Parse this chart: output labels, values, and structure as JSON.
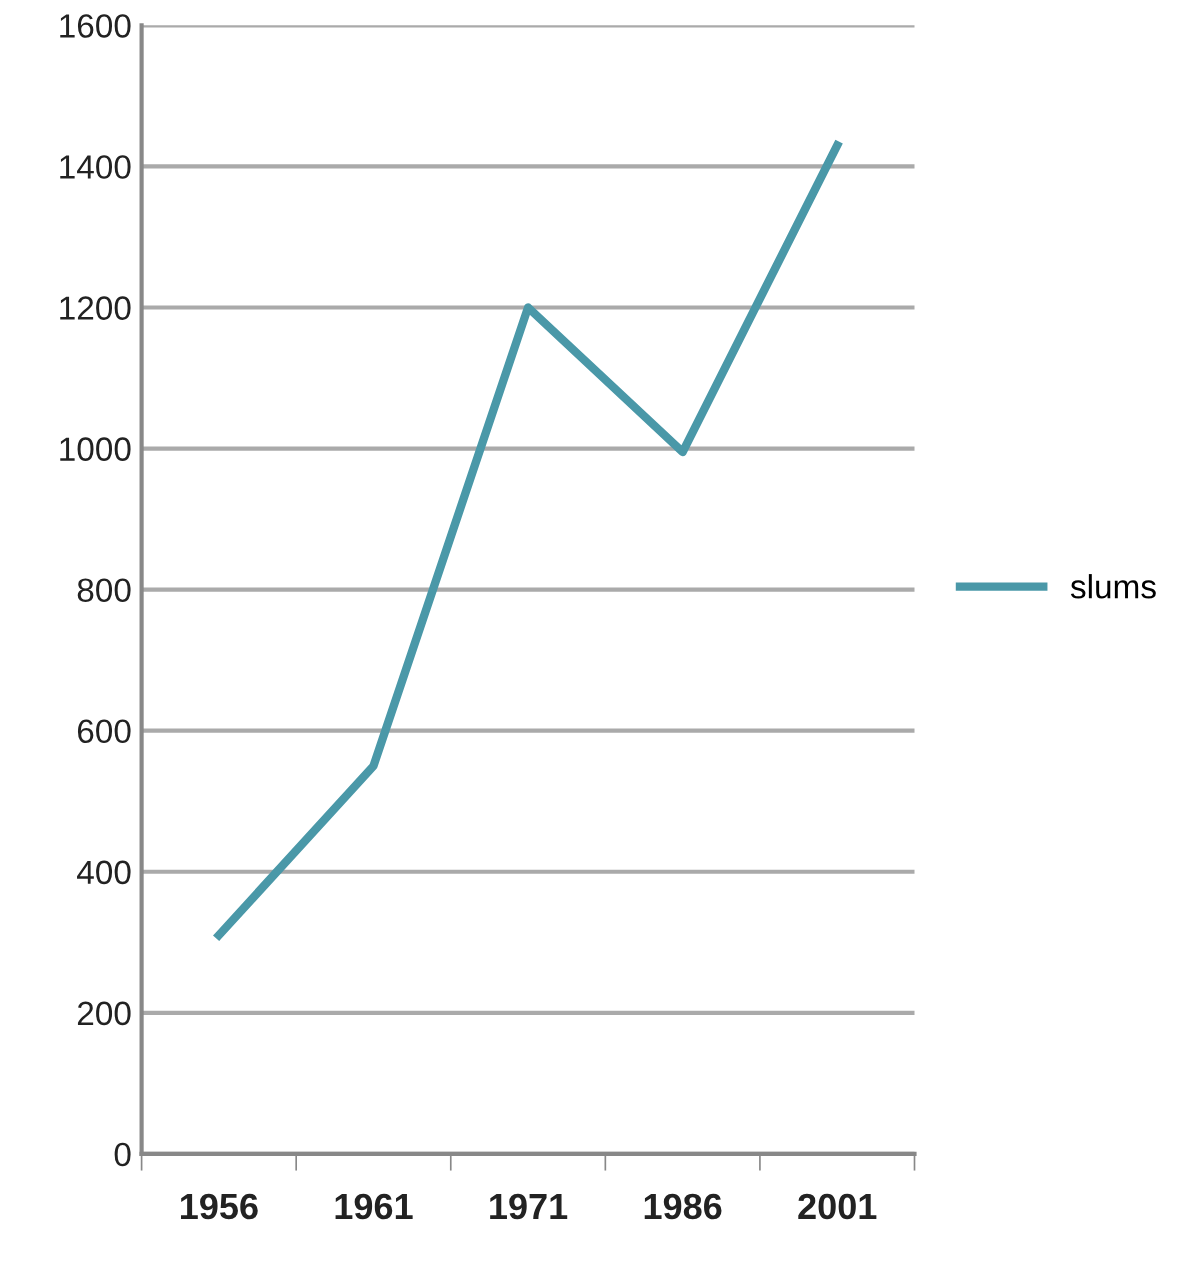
{
  "chart_data": {
    "type": "line",
    "categories": [
      "1956",
      "1961",
      "1971",
      "1986",
      "2001"
    ],
    "series": [
      {
        "name": "slums",
        "color": "#4a98a8",
        "values": [
          310,
          550,
          1200,
          995,
          1430
        ]
      }
    ],
    "ylim": [
      0,
      1600
    ],
    "yticks": [
      0,
      200,
      400,
      600,
      800,
      1000,
      1200,
      1400,
      1600
    ],
    "grid": "y",
    "legend": "right",
    "marker": "none",
    "line_style": "solid"
  }
}
